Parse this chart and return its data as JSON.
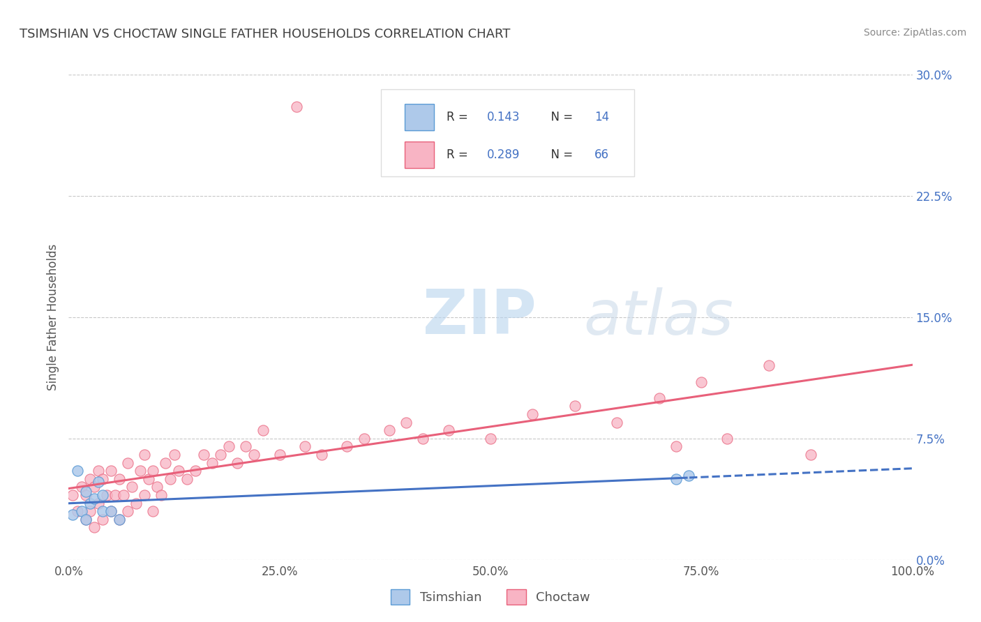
{
  "title": "TSIMSHIAN VS CHOCTAW SINGLE FATHER HOUSEHOLDS CORRELATION CHART",
  "source": "Source: ZipAtlas.com",
  "ylabel": "Single Father Households",
  "watermark_zip": "ZIP",
  "watermark_atlas": "atlas",
  "legend_tsimshian": "Tsimshian",
  "legend_choctaw": "Choctaw",
  "R_tsimshian": "0.143",
  "N_tsimshian": "14",
  "R_choctaw": "0.289",
  "N_choctaw": "66",
  "xlim": [
    0,
    1.0
  ],
  "ylim": [
    0,
    0.3
  ],
  "xticks": [
    0.0,
    0.25,
    0.5,
    0.75,
    1.0
  ],
  "yticks": [
    0.0,
    0.075,
    0.15,
    0.225,
    0.3
  ],
  "xticklabels": [
    "0.0%",
    "25.0%",
    "50.0%",
    "75.0%",
    "100.0%"
  ],
  "yticklabels_right": [
    "0.0%",
    "7.5%",
    "15.0%",
    "22.5%",
    "30.0%"
  ],
  "color_tsimshian_fill": "#aec9ea",
  "color_tsimshian_edge": "#5b9bd5",
  "color_choctaw_fill": "#f8b4c4",
  "color_choctaw_edge": "#e8607a",
  "color_trendline_tsimshian": "#4472c4",
  "color_trendline_choctaw": "#e8607a",
  "background_color": "#ffffff",
  "grid_color": "#c8c8c8",
  "title_color": "#404040",
  "source_color": "#888888",
  "tick_color": "#555555",
  "right_tick_color": "#4472c4",
  "tsimshian_x": [
    0.005,
    0.01,
    0.015,
    0.02,
    0.02,
    0.025,
    0.03,
    0.035,
    0.04,
    0.04,
    0.05,
    0.06,
    0.72,
    0.735
  ],
  "tsimshian_y": [
    0.028,
    0.055,
    0.03,
    0.025,
    0.042,
    0.035,
    0.038,
    0.048,
    0.03,
    0.04,
    0.03,
    0.025,
    0.05,
    0.052
  ],
  "choctaw_x": [
    0.005,
    0.01,
    0.015,
    0.02,
    0.02,
    0.025,
    0.025,
    0.03,
    0.03,
    0.035,
    0.035,
    0.04,
    0.04,
    0.045,
    0.05,
    0.05,
    0.055,
    0.06,
    0.06,
    0.065,
    0.07,
    0.07,
    0.075,
    0.08,
    0.085,
    0.09,
    0.09,
    0.095,
    0.1,
    0.1,
    0.105,
    0.11,
    0.115,
    0.12,
    0.125,
    0.13,
    0.14,
    0.15,
    0.16,
    0.17,
    0.18,
    0.19,
    0.2,
    0.21,
    0.22,
    0.23,
    0.25,
    0.27,
    0.28,
    0.3,
    0.33,
    0.35,
    0.38,
    0.4,
    0.42,
    0.45,
    0.5,
    0.55,
    0.6,
    0.65,
    0.7,
    0.72,
    0.75,
    0.78,
    0.83,
    0.88
  ],
  "choctaw_y": [
    0.04,
    0.03,
    0.045,
    0.025,
    0.04,
    0.03,
    0.05,
    0.02,
    0.045,
    0.035,
    0.055,
    0.025,
    0.05,
    0.04,
    0.03,
    0.055,
    0.04,
    0.025,
    0.05,
    0.04,
    0.03,
    0.06,
    0.045,
    0.035,
    0.055,
    0.04,
    0.065,
    0.05,
    0.03,
    0.055,
    0.045,
    0.04,
    0.06,
    0.05,
    0.065,
    0.055,
    0.05,
    0.055,
    0.065,
    0.06,
    0.065,
    0.07,
    0.06,
    0.07,
    0.065,
    0.08,
    0.065,
    0.28,
    0.07,
    0.065,
    0.07,
    0.075,
    0.08,
    0.085,
    0.075,
    0.08,
    0.075,
    0.09,
    0.095,
    0.085,
    0.1,
    0.07,
    0.11,
    0.075,
    0.12,
    0.065
  ]
}
